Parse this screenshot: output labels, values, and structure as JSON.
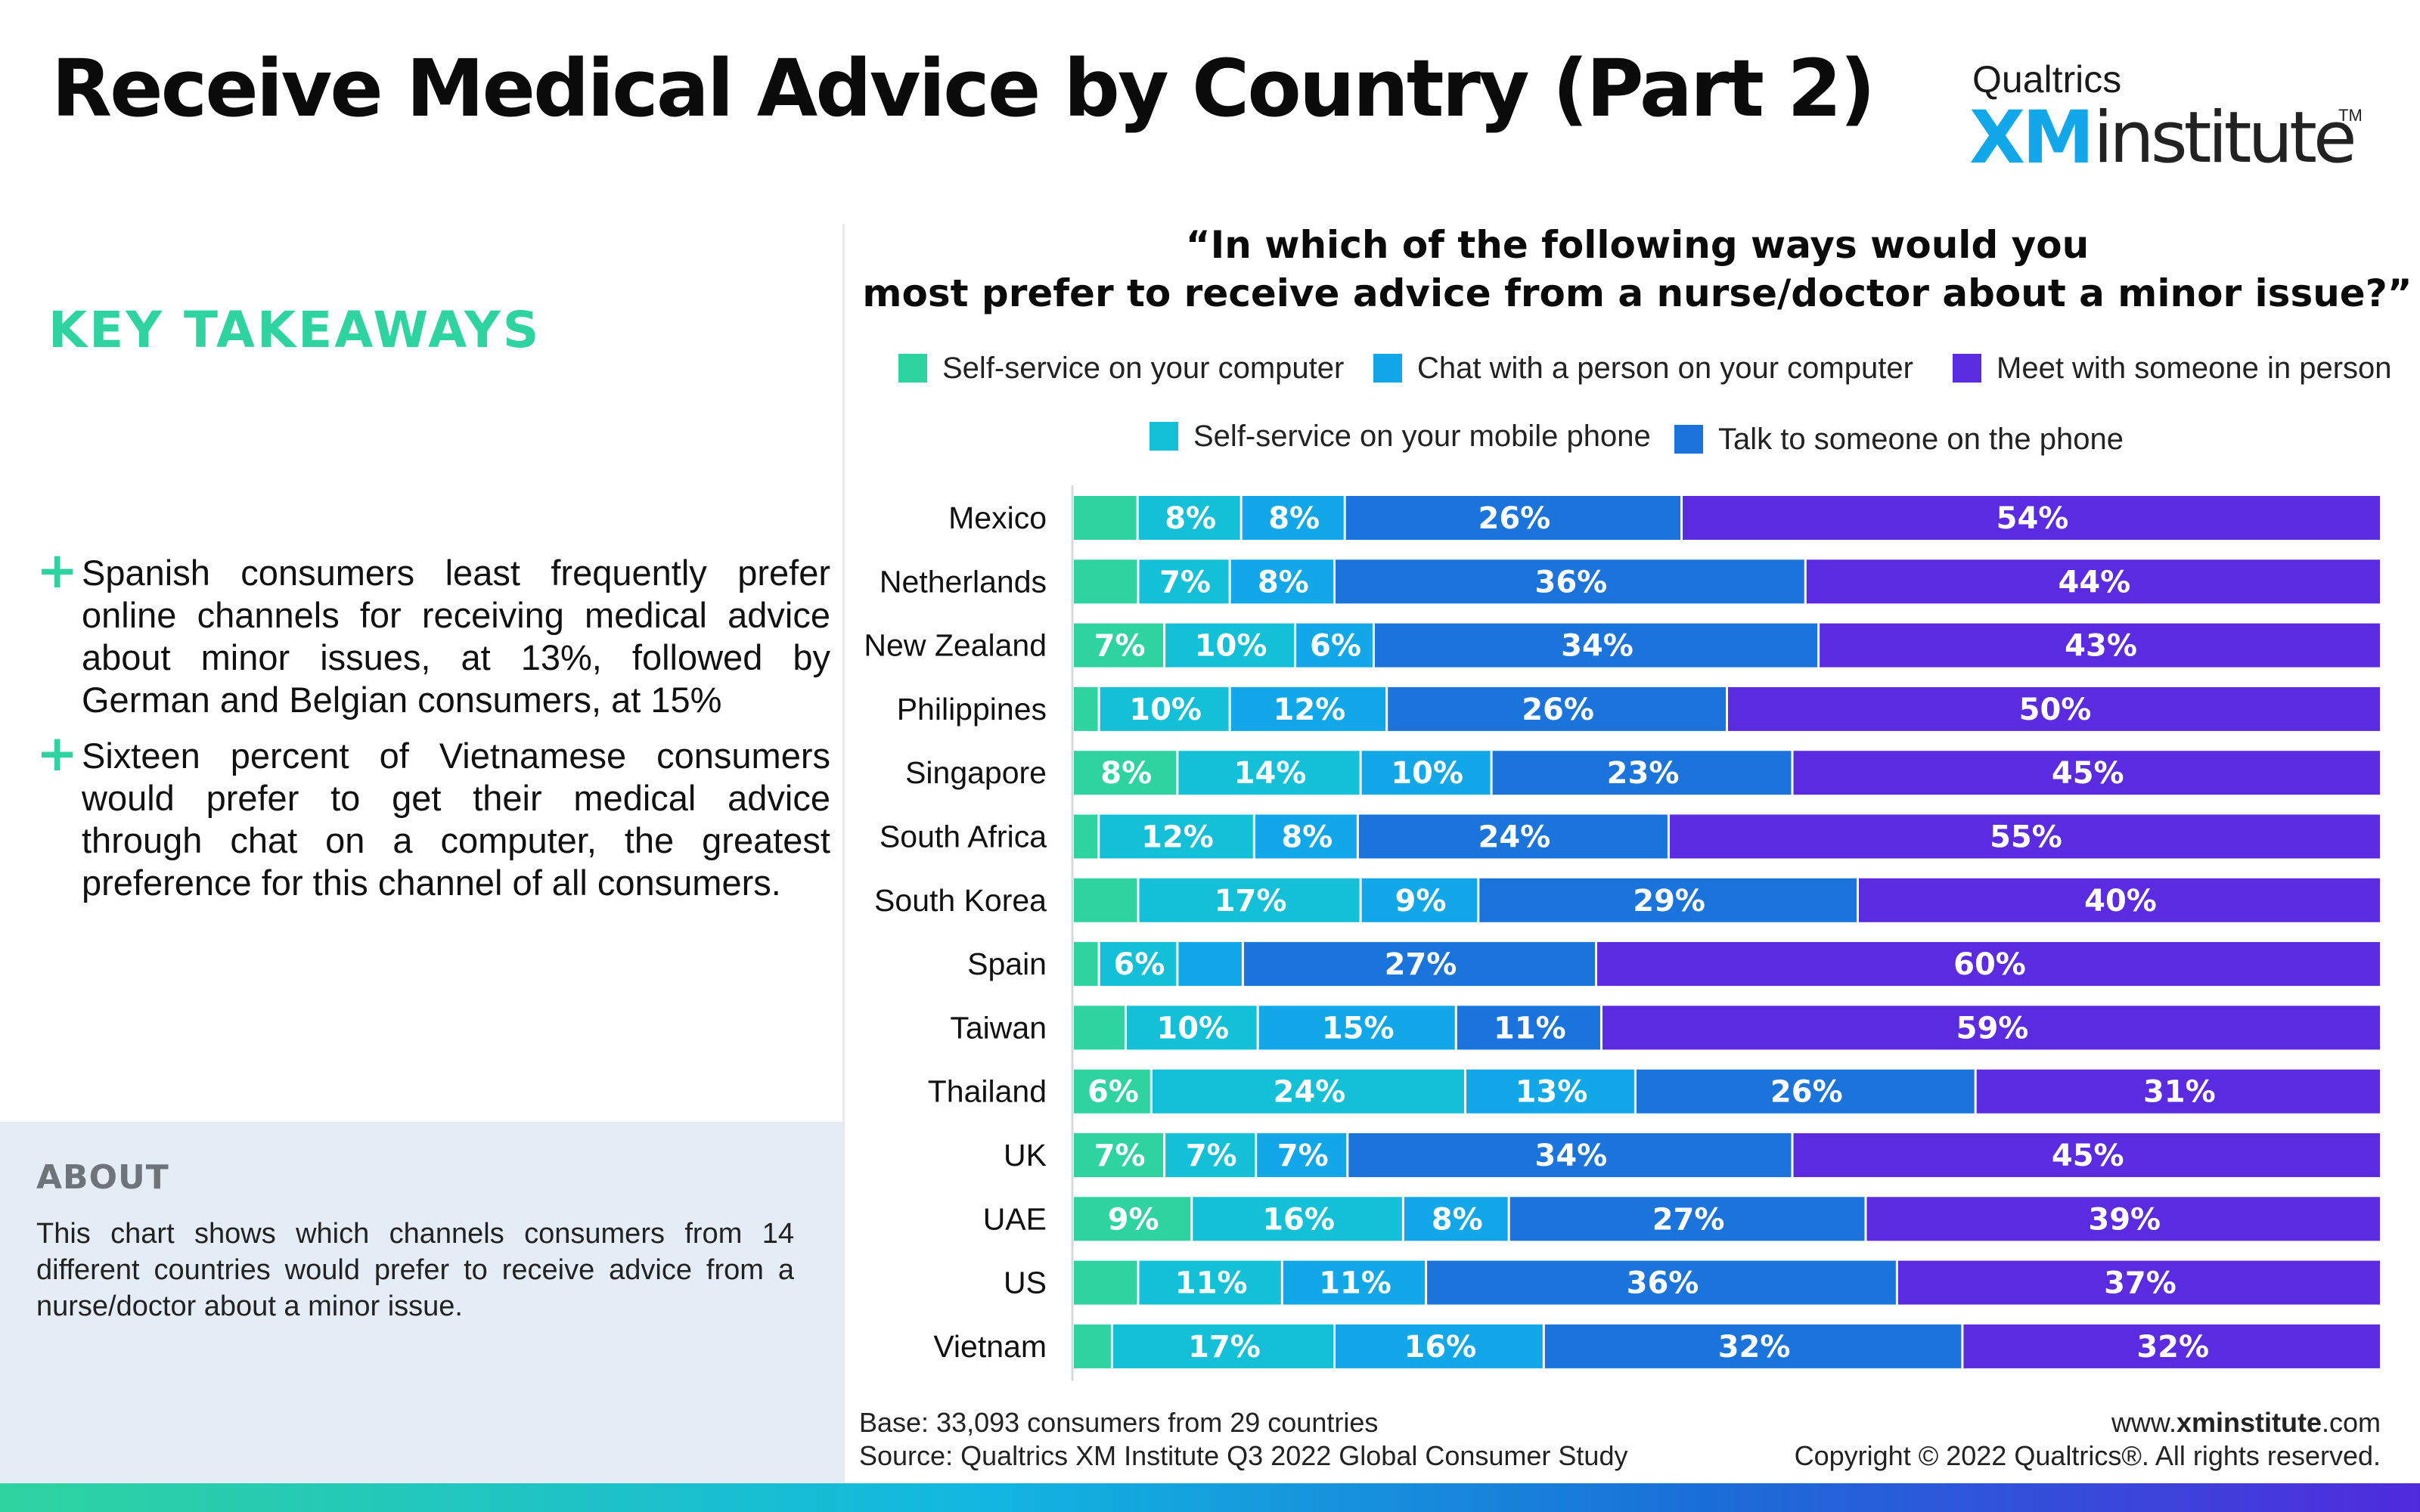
{
  "title": "Receive Medical Advice by Country (Part 2)",
  "brand": {
    "top": "Qualtrics",
    "xm": "XM",
    "institute": "institute",
    "tm": "TM"
  },
  "takeaways": {
    "heading": "KEY TAKEAWAYS",
    "plus": "+",
    "bullets": [
      "Spanish consumers least frequently prefer online channels for receiving medical advice about minor issues, at 13%, followed by German and Belgian consumers, at 15%",
      "Sixteen percent of Vietnamese consumers would prefer to get their medical advice through chat on a computer, the greatest preference for this channel of all consumers."
    ]
  },
  "about": {
    "heading": "ABOUT",
    "text": "This chart shows which channels consumers from 14 different countries would prefer to receive advice from a nurse/doctor about a minor issue."
  },
  "question": {
    "line1": "“In which of the following ways would you",
    "line2": "most prefer to receive advice from a nurse/doctor about a minor issue?”"
  },
  "legend": [
    {
      "label": "Self-service on your computer",
      "color": "#2fd3a0"
    },
    {
      "label": "Chat with a person on your computer",
      "color": "#11a7e8"
    },
    {
      "label": "Meet with someone in person",
      "color": "#5a2be0"
    },
    {
      "label": "Self-service on your mobile phone",
      "color": "#14bfd8"
    },
    {
      "label": "Talk to someone on the phone",
      "color": "#1b74dc"
    }
  ],
  "chart_data": {
    "type": "bar",
    "orientation": "horizontal",
    "stacked": true,
    "categories": [
      "Mexico",
      "Netherlands",
      "New Zealand",
      "Philippines",
      "Singapore",
      "South Africa",
      "South Korea",
      "Spain",
      "Taiwan",
      "Thailand",
      "UK",
      "UAE",
      "US",
      "Vietnam"
    ],
    "series": [
      {
        "name": "Self-service on your computer",
        "color": "#2fd3a0",
        "values": [
          5,
          5,
          7,
          2,
          8,
          2,
          5,
          2,
          4,
          6,
          7,
          9,
          5,
          3
        ]
      },
      {
        "name": "Self-service on your mobile phone",
        "color": "#14bfd8",
        "values": [
          8,
          7,
          10,
          10,
          14,
          12,
          17,
          6,
          10,
          24,
          7,
          16,
          11,
          17
        ]
      },
      {
        "name": "Chat with a person on your computer",
        "color": "#11a7e8",
        "values": [
          8,
          8,
          6,
          12,
          10,
          8,
          9,
          5,
          15,
          13,
          7,
          8,
          11,
          16
        ]
      },
      {
        "name": "Talk to someone on the phone",
        "color": "#1b74dc",
        "values": [
          26,
          36,
          34,
          26,
          23,
          24,
          29,
          27,
          11,
          26,
          34,
          27,
          36,
          32
        ]
      },
      {
        "name": "Meet with someone in person",
        "color": "#5a2be0",
        "values": [
          54,
          44,
          43,
          50,
          45,
          55,
          40,
          60,
          59,
          31,
          45,
          39,
          37,
          32
        ]
      }
    ],
    "data_labels": [
      [
        "",
        "8%",
        "8%",
        "26%",
        "54%"
      ],
      [
        "",
        "7%",
        "8%",
        "36%",
        "44%"
      ],
      [
        "7%",
        "10%",
        "6%",
        "34%",
        "43%"
      ],
      [
        "",
        "10%",
        "12%",
        "26%",
        "50%"
      ],
      [
        "8%",
        "14%",
        "10%",
        "23%",
        "45%"
      ],
      [
        "",
        "12%",
        "8%",
        "24%",
        "55%"
      ],
      [
        "",
        "17%",
        "9%",
        "29%",
        "40%"
      ],
      [
        "",
        "6%",
        "",
        "27%",
        "60%"
      ],
      [
        "",
        "10%",
        "15%",
        "11%",
        "59%"
      ],
      [
        "6%",
        "24%",
        "13%",
        "26%",
        "31%"
      ],
      [
        "7%",
        "7%",
        "7%",
        "34%",
        "45%"
      ],
      [
        "9%",
        "16%",
        "8%",
        "27%",
        "39%"
      ],
      [
        "",
        "11%",
        "11%",
        "36%",
        "37%"
      ],
      [
        "",
        "17%",
        "16%",
        "32%",
        "32%"
      ]
    ],
    "xlim": [
      0,
      100
    ],
    "legend_position": "top",
    "grid": false
  },
  "footer": {
    "base": "Base: 33,093 consumers from 29 countries",
    "source": "Source: Qualtrics XM Institute Q3 2022 Global Consumer Study",
    "url_prefix": "www.",
    "url_bold": "xminstitute",
    "url_suffix": ".com",
    "copyright": "Copyright © 2022 Qualtrics®. All rights reserved."
  }
}
